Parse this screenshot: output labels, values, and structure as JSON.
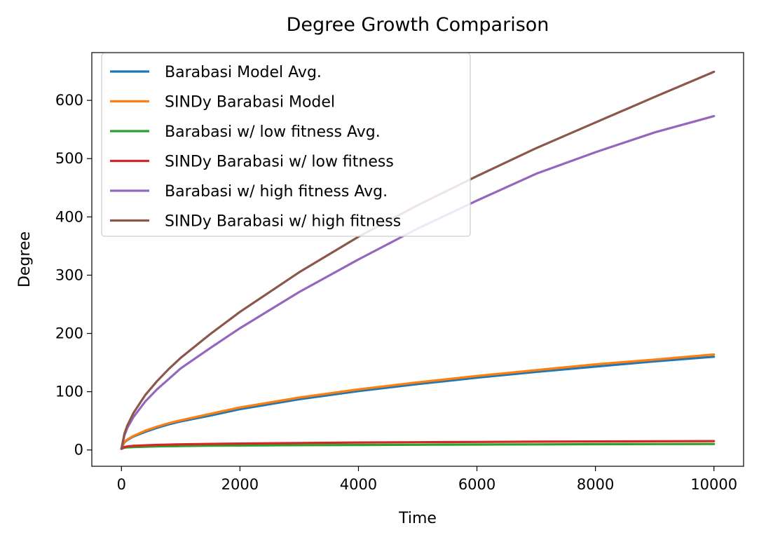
{
  "chart_data": {
    "type": "line",
    "title": "Degree Growth Comparison",
    "xlabel": "Time",
    "ylabel": "Degree",
    "xlim": [
      -500,
      10500
    ],
    "ylim": [
      -28,
      682
    ],
    "xticks": [
      0,
      2000,
      4000,
      6000,
      8000,
      10000
    ],
    "yticks": [
      0,
      100,
      200,
      300,
      400,
      500,
      600
    ],
    "grid": false,
    "legend_position": "top-left",
    "x": [
      0,
      50,
      100,
      200,
      400,
      600,
      800,
      1000,
      1500,
      2000,
      3000,
      4000,
      5000,
      6000,
      7000,
      8000,
      9000,
      10000
    ],
    "series": [
      {
        "name": "Barabasi Model Avg.",
        "color": "#1f77b4",
        "values": [
          2,
          13,
          17,
          23,
          31,
          38,
          44,
          49,
          59,
          70,
          87,
          101,
          113,
          124,
          134,
          143,
          152,
          160
        ]
      },
      {
        "name": "SINDy Barabasi Model",
        "color": "#ff7f0e",
        "values": [
          2,
          14,
          18,
          24,
          33,
          40,
          46,
          51,
          62,
          73,
          90,
          104,
          116,
          127,
          137,
          147,
          155,
          164
        ]
      },
      {
        "name": "Barabasi w/ low fitness Avg.",
        "color": "#2ca02c",
        "values": [
          2,
          4,
          4.5,
          5,
          5.6,
          6,
          6.4,
          6.7,
          7.2,
          7.6,
          8.2,
          8.6,
          9,
          9.3,
          9.6,
          9.9,
          10.1,
          10.3
        ]
      },
      {
        "name": "SINDy Barabasi w/ low fitness",
        "color": "#d62728",
        "values": [
          2,
          5,
          6,
          7,
          8,
          8.7,
          9.2,
          9.7,
          10.4,
          11,
          12,
          12.8,
          13.3,
          13.8,
          14.2,
          14.6,
          14.9,
          15.2
        ]
      },
      {
        "name": "Barabasi w/ high fitness Avg.",
        "color": "#9467bd",
        "values": [
          2,
          25,
          38,
          56,
          83,
          104,
          122,
          140,
          175,
          209,
          271,
          327,
          380,
          428,
          474,
          511,
          545,
          573
        ]
      },
      {
        "name": "SINDy Barabasi w/ high fitness",
        "color": "#8c564b",
        "values": [
          2,
          28,
          42,
          63,
          94,
          118,
          139,
          158,
          199,
          237,
          305,
          366,
          420,
          470,
          518,
          562,
          606,
          649
        ]
      }
    ]
  }
}
